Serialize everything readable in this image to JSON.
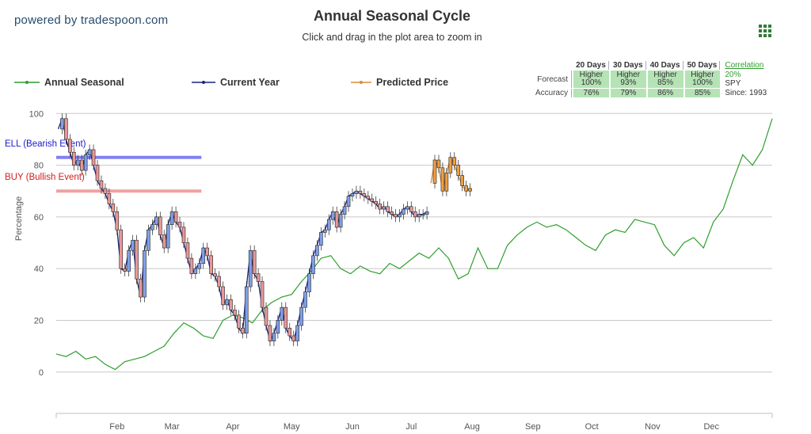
{
  "header": {
    "brand": "powered by tradespoon.com",
    "title": "Annual Seasonal Cycle",
    "subtitle": "Click and drag in the plot area to zoom in"
  },
  "legend": [
    {
      "label": "Annual Seasonal",
      "color": "#2e9e2e"
    },
    {
      "label": "Current Year",
      "color": "#1a237e"
    },
    {
      "label": "Predicted Price",
      "color": "#e08a3c"
    }
  ],
  "stats": {
    "columns": [
      "20 Days",
      "30 Days",
      "40 Days",
      "50 Days"
    ],
    "forecast_label": "Forecast",
    "accuracy_label": "Accuracy",
    "forecast": [
      {
        "dir": "Higher",
        "pct": "100%"
      },
      {
        "dir": "Higher",
        "pct": "93%"
      },
      {
        "dir": "Higher",
        "pct": "85%"
      },
      {
        "dir": "Higher",
        "pct": "100%"
      }
    ],
    "accuracy": [
      "76%",
      "79%",
      "86%",
      "85%"
    ],
    "correlation_label": "Correlation",
    "correlation_value": "20%",
    "symbol": "SPY",
    "since": "Since: 1993"
  },
  "chart_data": {
    "type": "line",
    "ylabel": "Percentage",
    "y_ticks": [
      0,
      20,
      40,
      60,
      80,
      100
    ],
    "ylim": [
      -16,
      101
    ],
    "x_tick_labels": [
      "Feb",
      "Mar",
      "Apr",
      "May",
      "Jun",
      "Jul",
      "Aug",
      "Sep",
      "Oct",
      "Nov",
      "Dec"
    ],
    "grid": true,
    "legend_position": "top",
    "bands": [
      {
        "label": "ELL (Bearish Event)",
        "y": 83,
        "color": "#6a6af0",
        "text_color": "#1a1acc"
      },
      {
        "label": "BUY (Bullish Event)",
        "y": 70,
        "color": "#f09090",
        "text_color": "#d02020"
      }
    ],
    "series": [
      {
        "name": "Annual Seasonal",
        "color": "#2e9e2e",
        "x_day": [
          0,
          5,
          10,
          15,
          20,
          25,
          30,
          35,
          40,
          45,
          50,
          55,
          60,
          65,
          70,
          75,
          80,
          85,
          90,
          95,
          100,
          105,
          110,
          115,
          120,
          125,
          130,
          135,
          140,
          145,
          150,
          155,
          160,
          165,
          170,
          175,
          180,
          185,
          190,
          195,
          200,
          205,
          210,
          215,
          220,
          225,
          230,
          235,
          240,
          245,
          250,
          255,
          260,
          265,
          270,
          275,
          280,
          285,
          290,
          295,
          300,
          305,
          310,
          315,
          320,
          325,
          330,
          335,
          340,
          345,
          350,
          355,
          360,
          365
        ],
        "y": [
          7,
          6,
          8,
          5,
          6,
          3,
          1,
          4,
          5,
          6,
          8,
          10,
          15,
          19,
          17,
          14,
          13,
          20,
          22,
          21,
          19,
          24,
          27,
          29,
          30,
          35,
          39,
          44,
          45,
          40,
          38,
          41,
          39,
          38,
          42,
          40,
          43,
          46,
          44,
          48,
          44,
          36,
          38,
          48,
          40,
          40,
          49,
          53,
          56,
          58,
          56,
          57,
          55,
          52,
          49,
          47,
          53,
          55,
          54,
          59,
          58,
          57,
          49,
          45,
          50,
          52,
          48,
          58,
          63,
          74,
          84,
          80,
          86,
          98
        ]
      },
      {
        "name": "Current Year",
        "color": "#1a237e",
        "x_day": [
          1,
          3,
          5,
          7,
          9,
          11,
          13,
          15,
          17,
          19,
          21,
          23,
          25,
          27,
          29,
          31,
          33,
          35,
          37,
          39,
          41,
          43,
          45,
          47,
          49,
          51,
          53,
          55,
          57,
          59,
          61,
          63,
          65,
          67,
          69,
          71,
          73,
          75,
          77,
          79,
          81,
          83,
          85,
          87,
          89,
          91,
          93,
          95,
          97,
          99,
          101,
          103,
          105,
          107,
          109,
          111,
          113,
          115,
          117,
          119,
          121,
          123,
          125,
          127,
          129,
          131,
          133,
          135,
          137,
          139,
          141,
          143,
          145,
          147,
          149,
          151,
          153,
          155,
          157,
          159,
          161,
          163,
          165,
          167,
          169,
          171,
          173,
          175,
          177,
          179,
          181,
          183,
          185,
          187,
          189
        ],
        "y": [
          94,
          98,
          90,
          85,
          80,
          82,
          78,
          84,
          86,
          80,
          74,
          71,
          69,
          65,
          62,
          55,
          40,
          39,
          47,
          51,
          36,
          29,
          47,
          55,
          57,
          60,
          53,
          48,
          57,
          62,
          58,
          56,
          50,
          44,
          38,
          40,
          42,
          48,
          45,
          38,
          37,
          33,
          26,
          28,
          24,
          22,
          17,
          15,
          33,
          47,
          38,
          35,
          25,
          18,
          12,
          15,
          20,
          25,
          17,
          14,
          12,
          18,
          25,
          31,
          38,
          45,
          49,
          54,
          55,
          59,
          62,
          56,
          61,
          64,
          68,
          69,
          70,
          69,
          68,
          67,
          66,
          65,
          63,
          64,
          62,
          61,
          60,
          61,
          63,
          64,
          62,
          60,
          61,
          61,
          62
        ]
      },
      {
        "name": "Predicted Price",
        "color": "#e08a3c",
        "x_day": [
          191,
          193,
          195,
          197,
          199,
          201,
          203,
          205,
          207,
          209,
          211
        ],
        "y": [
          73,
          82,
          79,
          70,
          77,
          83,
          80,
          76,
          72,
          70,
          71
        ]
      }
    ]
  }
}
